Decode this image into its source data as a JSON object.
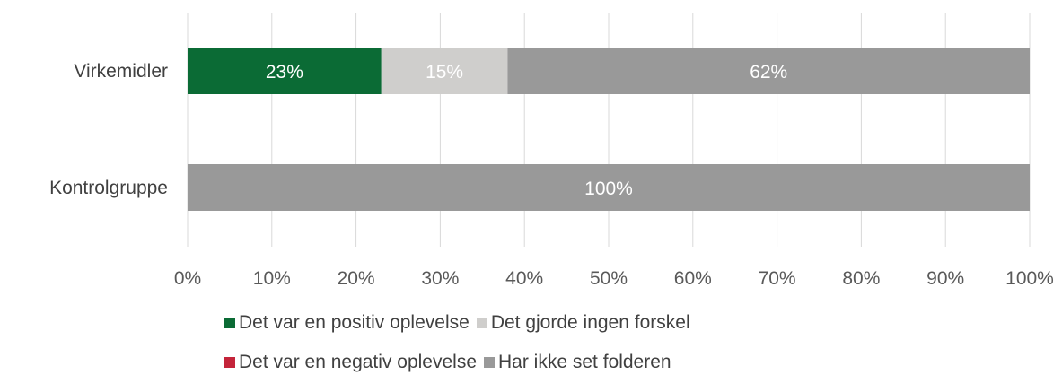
{
  "chart_data": {
    "type": "bar",
    "orientation": "horizontal",
    "stacked": true,
    "categories": [
      "Virkemidler",
      "Kontrolgruppe"
    ],
    "series": [
      {
        "name": "Det var en positiv oplevelse",
        "color": "#0b6b35",
        "values": [
          23,
          0
        ],
        "labels": [
          "23%",
          ""
        ]
      },
      {
        "name": "Det gjorde ingen forskel",
        "color": "#cfcecc",
        "values": [
          15,
          0
        ],
        "labels": [
          "15%",
          ""
        ]
      },
      {
        "name": "Det var en negativ oplevelse",
        "color": "#c4243a",
        "values": [
          0,
          0
        ],
        "labels": [
          "",
          ""
        ]
      },
      {
        "name": "Har ikke set folderen",
        "color": "#999999",
        "values": [
          62,
          100
        ],
        "labels": [
          "62%",
          "100%"
        ]
      }
    ],
    "xlim": [
      0,
      100
    ],
    "xticks": [
      "0%",
      "10%",
      "20%",
      "30%",
      "40%",
      "50%",
      "60%",
      "70%",
      "80%",
      "90%",
      "100%"
    ],
    "grid": true,
    "legend_placement": "bottom"
  },
  "legend": {
    "row1": [
      {
        "label": "Det var en positiv oplevelse",
        "color": "#0b6b35"
      },
      {
        "label": "Det gjorde ingen forskel",
        "color": "#cfcecc"
      }
    ],
    "row2": [
      {
        "label": "Det var en negativ oplevelse",
        "color": "#c4243a"
      },
      {
        "label": "Har ikke set folderen",
        "color": "#999999"
      }
    ]
  }
}
